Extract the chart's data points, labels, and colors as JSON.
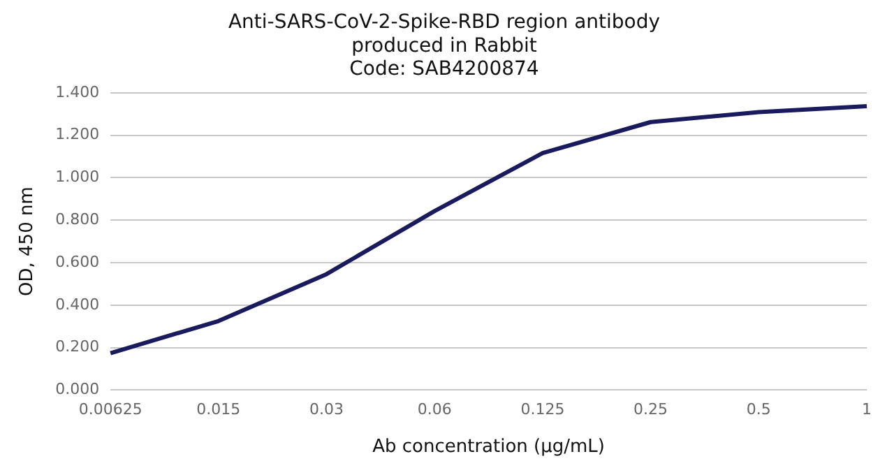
{
  "chart_data": {
    "type": "line",
    "title": [
      "Anti-SARS-CoV-2-Spike-RBD region antibody",
      "produced in Rabbit",
      "Code: SAB4200874"
    ],
    "xlabel": "Ab concentration (µg/mL)",
    "ylabel": "OD, 450 nm",
    "categories": [
      "0.00625",
      "0.015",
      "0.03",
      "0.06",
      "0.125",
      "0.25",
      "0.5",
      "1"
    ],
    "series": [
      {
        "color": "#1a1a5e",
        "values": [
          0.174,
          0.325,
          0.546,
          0.843,
          1.116,
          1.262,
          1.309,
          1.337
        ]
      }
    ],
    "ylim": [
      0,
      1.4
    ],
    "yticks": [
      {
        "value": 0,
        "label": "0.000"
      },
      {
        "value": 0.2,
        "label": "0.200"
      },
      {
        "value": 0.4,
        "label": "0.400"
      },
      {
        "value": 0.6,
        "label": "0.600"
      },
      {
        "value": 0.8,
        "label": "0.800"
      },
      {
        "value": 1,
        "label": "1.000"
      },
      {
        "value": 1.2,
        "label": "1.200"
      },
      {
        "value": 1.4,
        "label": "1.400"
      }
    ],
    "grid": "y",
    "legend": false,
    "marker": "none",
    "line_style": "solid"
  }
}
